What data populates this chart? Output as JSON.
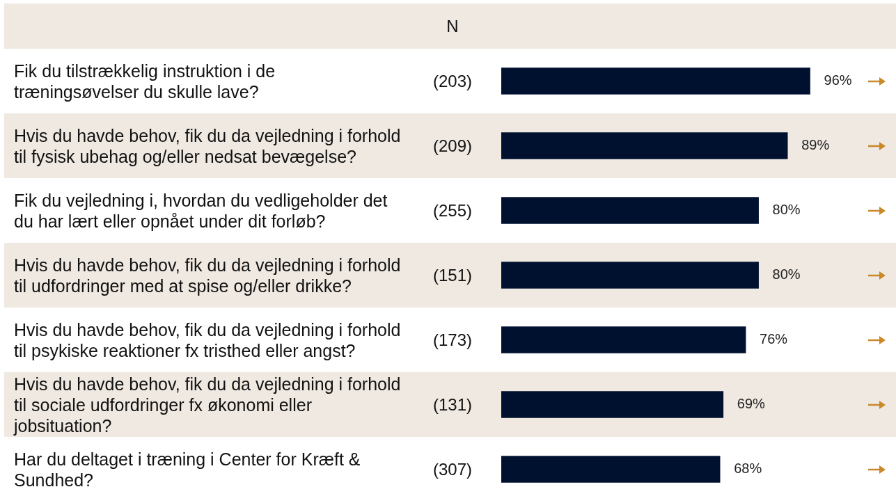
{
  "chart_data": {
    "type": "bar",
    "orientation": "horizontal",
    "categories": [
      "Fik du tilstrækkelig instruktion i de træningsøvelser du skulle lave?",
      "Hvis du havde behov, fik du da vejledning i forhold til fysisk ubehag og/eller nedsat bevægelse?",
      "Fik du vejledning i, hvordan du vedligeholder det du har lært eller opnået under dit forløb?",
      "Hvis du havde behov, fik du da vejledning i forhold til udfordringer med at spise og/eller drikke?",
      "Hvis du havde behov, fik du da vejledning i forhold til psykiske reaktioner fx tristhed eller angst?",
      "Hvis du havde behov, fik du da vejledning i forhold til sociale udfordringer fx økonomi eller jobsituation?",
      "Har du deltaget i træning i Center for Kræft & Sundhed?"
    ],
    "values": [
      96,
      89,
      80,
      80,
      76,
      69,
      68
    ],
    "value_labels": [
      "96%",
      "89%",
      "80%",
      "80%",
      "76%",
      "69%",
      "68%"
    ],
    "color": "#00112f",
    "annotations": [
      "N",
      "(203)",
      "(209)",
      "(255)",
      "(151)",
      "(173)",
      "(131)",
      "(307)"
    ]
  }
}
